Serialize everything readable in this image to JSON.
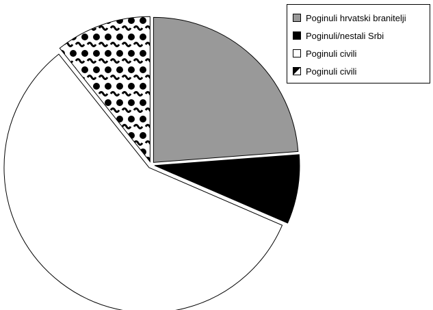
{
  "chart_data": {
    "type": "pie",
    "title": "",
    "legend_position": "top-right",
    "series": [
      {
        "name": "Poginuli hrvatski branitelji",
        "value": 23.8,
        "fill": "#999999",
        "pattern": "solid"
      },
      {
        "name": "Poginuli/nestali Srbi",
        "value": 7.7,
        "fill": "#000000",
        "pattern": "solid"
      },
      {
        "name": "Poginuli civili",
        "value": 57.8,
        "fill": "#ffffff",
        "pattern": "solid"
      },
      {
        "name": "Poginuli civili",
        "value": 10.7,
        "fill": "#ffffff",
        "pattern": "dots-waves"
      }
    ]
  }
}
